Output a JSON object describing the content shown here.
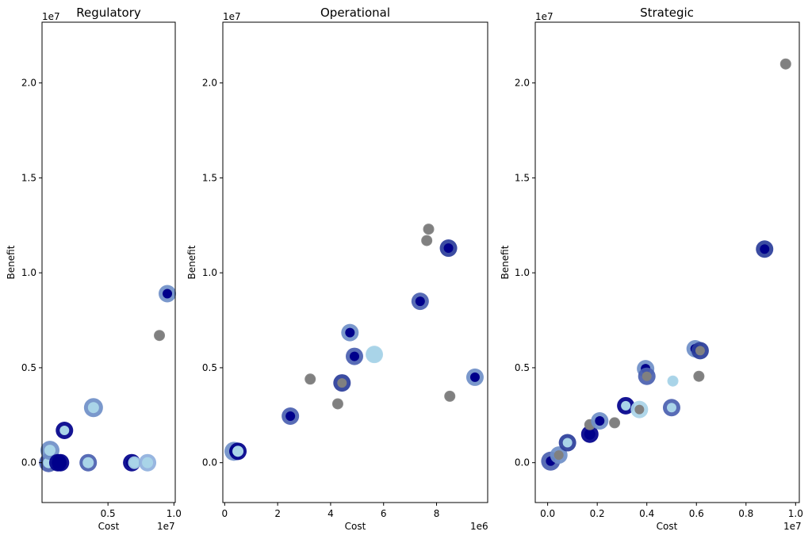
{
  "chart_data": [
    {
      "type": "scatter",
      "title": "Regulatory",
      "xlabel": "Cost",
      "ylabel": "Benefit",
      "x_offset_label": "1e7",
      "y_offset_label": "1e7",
      "xlim": [
        0.0,
        1.01
      ],
      "ylim": [
        -0.21,
        2.32
      ],
      "xticks": [
        {
          "v": 0.5,
          "label": "0.5"
        },
        {
          "v": 1.0,
          "label": "1.0"
        }
      ],
      "yticks": [
        {
          "v": 0.0,
          "label": "0.0"
        },
        {
          "v": 0.5,
          "label": "0.5"
        },
        {
          "v": 1.0,
          "label": "1.0"
        },
        {
          "v": 1.5,
          "label": "1.5"
        },
        {
          "v": 2.0,
          "label": "2.0"
        }
      ],
      "points": [
        {
          "x": 0.05,
          "y": 0.0,
          "ring": "#4a5fb0",
          "core": "#a9d4e8",
          "ring_r": 12,
          "core_r": 7
        },
        {
          "x": 0.06,
          "y": 0.065,
          "ring": "#6f8fc8",
          "core": "#a9d4e8",
          "ring_r": 12,
          "core_r": 7
        },
        {
          "x": 0.12,
          "y": 0.0,
          "ring": "#00008b",
          "core": "#00008b",
          "ring_r": 11,
          "core_r": 7
        },
        {
          "x": 0.14,
          "y": 0.0,
          "ring": "#00008b",
          "core": "#00008b",
          "ring_r": 11,
          "core_r": 7
        },
        {
          "x": 0.17,
          "y": 0.17,
          "ring": "#00008b",
          "core": "#a9d4e8",
          "ring_r": 11,
          "core_r": 6
        },
        {
          "x": 0.35,
          "y": 0.0,
          "ring": "#4a5fb0",
          "core": "#a9d4e8",
          "ring_r": 11,
          "core_r": 7
        },
        {
          "x": 0.39,
          "y": 0.29,
          "ring": "#6f8fc8",
          "core": "#a9d4e8",
          "ring_r": 12,
          "core_r": 7
        },
        {
          "x": 0.68,
          "y": 0.0,
          "ring": "#00008b",
          "core": "#00008b",
          "ring_r": 11,
          "core_r": 7
        },
        {
          "x": 0.7,
          "y": 0.0,
          "ring": "#a9d4e8",
          "core": "#a9d4e8",
          "ring_r": 8,
          "core_r": 6
        },
        {
          "x": 0.8,
          "y": 0.0,
          "ring": "#8fb0dd",
          "core": "#a9d4e8",
          "ring_r": 11,
          "core_r": 7
        },
        {
          "x": 0.89,
          "y": 0.67,
          "ring": "#808080",
          "core": "#808080",
          "ring_r": 7,
          "core_r": 6
        },
        {
          "x": 0.95,
          "y": 0.89,
          "ring": "#6f8fc8",
          "core": "#00008b",
          "ring_r": 11,
          "core_r": 6
        }
      ]
    },
    {
      "type": "scatter",
      "title": "Operational",
      "xlabel": "Cost",
      "ylabel": "Benefit",
      "x_offset_label": "1e6",
      "y_offset_label": "1e7",
      "xlim": [
        -0.07,
        9.93
      ],
      "ylim": [
        -0.21,
        2.32
      ],
      "xticks": [
        {
          "v": 0,
          "label": "0"
        },
        {
          "v": 2,
          "label": "2"
        },
        {
          "v": 4,
          "label": "4"
        },
        {
          "v": 6,
          "label": "6"
        },
        {
          "v": 8,
          "label": "8"
        }
      ],
      "yticks": [
        {
          "v": 0.0,
          "label": "0.0"
        },
        {
          "v": 0.5,
          "label": "0.5"
        },
        {
          "v": 1.0,
          "label": "1.0"
        },
        {
          "v": 1.5,
          "label": "1.5"
        },
        {
          "v": 2.0,
          "label": "2.0"
        }
      ],
      "points": [
        {
          "x": 0.35,
          "y": 0.06,
          "ring": "#6f8fc8",
          "core": "#00008b",
          "ring_r": 12,
          "core_r": 6
        },
        {
          "x": 0.5,
          "y": 0.06,
          "ring": "#00008b",
          "core": "#a9d4e8",
          "ring_r": 11,
          "core_r": 7
        },
        {
          "x": 2.48,
          "y": 0.245,
          "ring": "#4a5fb0",
          "core": "#00008b",
          "ring_r": 11,
          "core_r": 6
        },
        {
          "x": 3.23,
          "y": 0.44,
          "ring": "#808080",
          "core": "#808080",
          "ring_r": 7,
          "core_r": 6
        },
        {
          "x": 4.27,
          "y": 0.31,
          "ring": "#808080",
          "core": "#808080",
          "ring_r": 7,
          "core_r": 6
        },
        {
          "x": 4.43,
          "y": 0.42,
          "ring": "#2a3d9a",
          "core": "#808080",
          "ring_r": 11,
          "core_r": 6
        },
        {
          "x": 4.73,
          "y": 0.685,
          "ring": "#6f8fc8",
          "core": "#00008b",
          "ring_r": 11,
          "core_r": 6
        },
        {
          "x": 4.9,
          "y": 0.56,
          "ring": "#4a5fb0",
          "core": "#00008b",
          "ring_r": 11,
          "core_r": 6
        },
        {
          "x": 5.65,
          "y": 0.57,
          "ring": "#a9d4e8",
          "core": "#a9d4e8",
          "ring_r": 11,
          "core_r": 10
        },
        {
          "x": 7.38,
          "y": 0.85,
          "ring": "#4a5fb0",
          "core": "#00008b",
          "ring_r": 11,
          "core_r": 6
        },
        {
          "x": 7.63,
          "y": 1.17,
          "ring": "#808080",
          "core": "#808080",
          "ring_r": 7,
          "core_r": 6
        },
        {
          "x": 7.7,
          "y": 1.23,
          "ring": "#808080",
          "core": "#808080",
          "ring_r": 7,
          "core_r": 6
        },
        {
          "x": 8.45,
          "y": 1.13,
          "ring": "#2a3d9a",
          "core": "#00008b",
          "ring_r": 11,
          "core_r": 6
        },
        {
          "x": 8.5,
          "y": 0.35,
          "ring": "#808080",
          "core": "#808080",
          "ring_r": 7,
          "core_r": 6
        },
        {
          "x": 9.45,
          "y": 0.45,
          "ring": "#6f8fc8",
          "core": "#00008b",
          "ring_r": 11,
          "core_r": 6
        }
      ]
    },
    {
      "type": "scatter",
      "title": "Strategic",
      "xlabel": "Cost",
      "ylabel": "Benefit",
      "x_offset_label": "1e7",
      "y_offset_label": "1e7",
      "xlim": [
        -0.05,
        1.015
      ],
      "ylim": [
        -0.21,
        2.32
      ],
      "xticks": [
        {
          "v": 0.0,
          "label": "0.0"
        },
        {
          "v": 0.2,
          "label": "0.2"
        },
        {
          "v": 0.4,
          "label": "0.4"
        },
        {
          "v": 0.6,
          "label": "0.6"
        },
        {
          "v": 0.8,
          "label": "0.8"
        },
        {
          "v": 1.0,
          "label": "1.0"
        }
      ],
      "yticks": [
        {
          "v": 0.0,
          "label": "0.0"
        },
        {
          "v": 0.5,
          "label": "0.5"
        },
        {
          "v": 1.0,
          "label": "1.0"
        },
        {
          "v": 1.5,
          "label": "1.5"
        },
        {
          "v": 2.0,
          "label": "2.0"
        }
      ],
      "points": [
        {
          "x": 0.012,
          "y": 0.008,
          "ring": "#4a5fb0",
          "core": "#00008b",
          "ring_r": 12,
          "core_r": 6
        },
        {
          "x": 0.045,
          "y": 0.04,
          "ring": "#6f8fc8",
          "core": "#808080",
          "ring_r": 11,
          "core_r": 6
        },
        {
          "x": 0.08,
          "y": 0.105,
          "ring": "#2a3d9a",
          "core": "#a9d4e8",
          "ring_r": 11,
          "core_r": 6
        },
        {
          "x": 0.17,
          "y": 0.15,
          "ring": "#00008b",
          "core": "#00008b",
          "ring_r": 11,
          "core_r": 7
        },
        {
          "x": 0.17,
          "y": 0.2,
          "ring": "#808080",
          "core": "#808080",
          "ring_r": 7,
          "core_r": 6
        },
        {
          "x": 0.21,
          "y": 0.22,
          "ring": "#6f8fc8",
          "core": "#00008b",
          "ring_r": 11,
          "core_r": 6
        },
        {
          "x": 0.27,
          "y": 0.21,
          "ring": "#808080",
          "core": "#808080",
          "ring_r": 7,
          "core_r": 6
        },
        {
          "x": 0.315,
          "y": 0.3,
          "ring": "#00008b",
          "core": "#a9d4e8",
          "ring_r": 11,
          "core_r": 6
        },
        {
          "x": 0.37,
          "y": 0.28,
          "ring": "#a9d4e8",
          "core": "#808080",
          "ring_r": 11,
          "core_r": 6
        },
        {
          "x": 0.395,
          "y": 0.495,
          "ring": "#6f8fc8",
          "core": "#00008b",
          "ring_r": 11,
          "core_r": 6
        },
        {
          "x": 0.4,
          "y": 0.455,
          "ring": "#4a5fb0",
          "core": "#808080",
          "ring_r": 11,
          "core_r": 6
        },
        {
          "x": 0.5,
          "y": 0.29,
          "ring": "#4a5fb0",
          "core": "#a9d4e8",
          "ring_r": 11,
          "core_r": 6
        },
        {
          "x": 0.505,
          "y": 0.43,
          "ring": "#a9d4e8",
          "core": "#a9d4e8",
          "ring_r": 7,
          "core_r": 6
        },
        {
          "x": 0.595,
          "y": 0.6,
          "ring": "#6f8fc8",
          "core": "#00008b",
          "ring_r": 11,
          "core_r": 6
        },
        {
          "x": 0.61,
          "y": 0.455,
          "ring": "#808080",
          "core": "#808080",
          "ring_r": 7,
          "core_r": 6
        },
        {
          "x": 0.615,
          "y": 0.59,
          "ring": "#2a3d9a",
          "core": "#808080",
          "ring_r": 11,
          "core_r": 6
        },
        {
          "x": 0.875,
          "y": 1.125,
          "ring": "#2a3d9a",
          "core": "#00008b",
          "ring_r": 11,
          "core_r": 6
        },
        {
          "x": 0.96,
          "y": 2.1,
          "ring": "#808080",
          "core": "#808080",
          "ring_r": 7,
          "core_r": 6
        }
      ]
    }
  ]
}
